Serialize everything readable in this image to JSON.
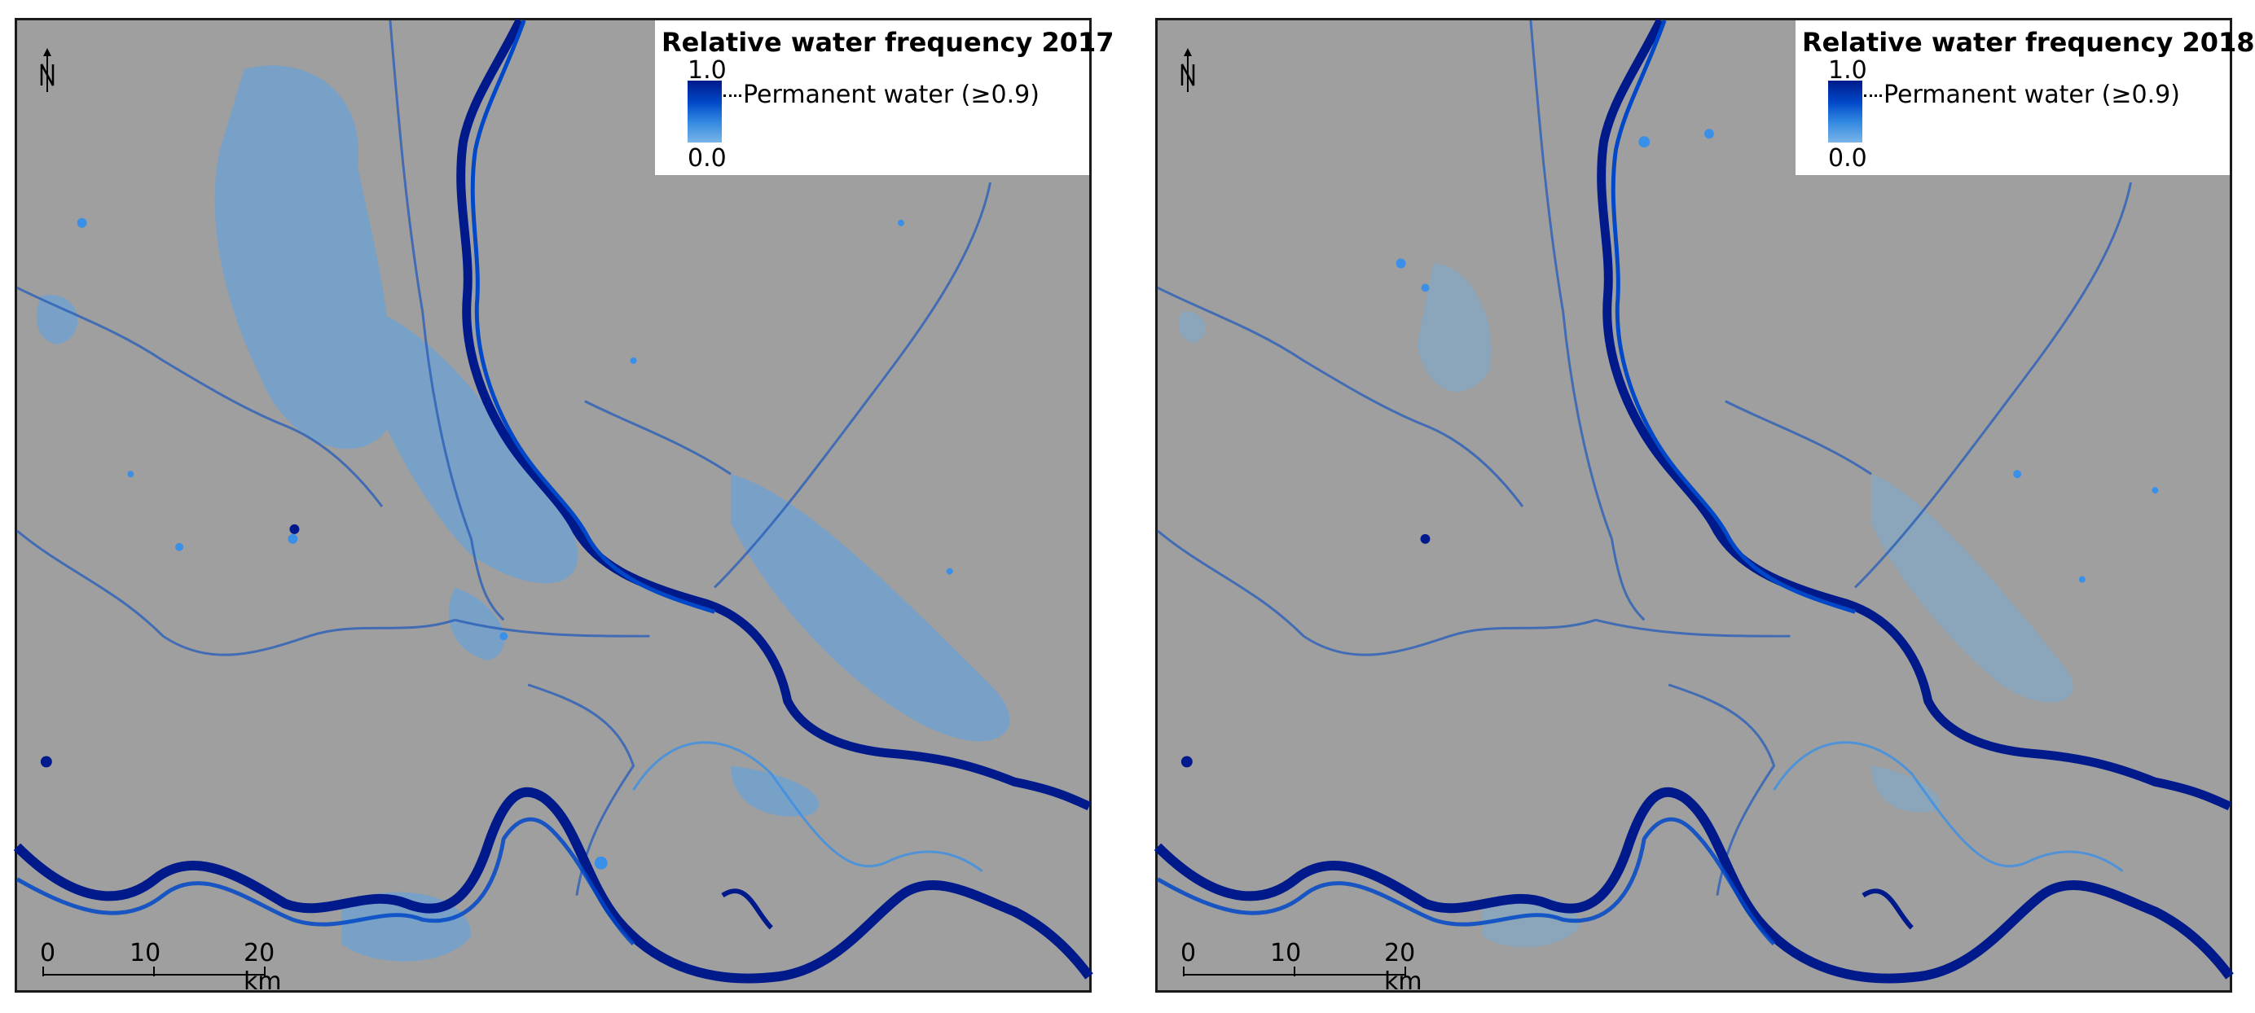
{
  "panels": [
    {
      "legend_title": "Relative water frequency 2017",
      "legend_max": "1.0",
      "legend_min": "0.0",
      "legend_permanent": "Permanent water (≥0.9)",
      "scale_labels": [
        "0",
        "10",
        "20 km"
      ],
      "north_label": "N"
    },
    {
      "legend_title": "Relative water frequency 2018",
      "legend_max": "1.0",
      "legend_min": "0.0",
      "legend_permanent": "Permanent water (≥0.9)",
      "scale_labels": [
        "0",
        "10",
        "20 km"
      ],
      "north_label": "N"
    }
  ],
  "colors": {
    "land": "#9f9f9f",
    "permanent_water": "#001a8c",
    "frequent_water": "#0048c8",
    "occasional_water": "#3a8fe6",
    "rare_water": "#7db6e6",
    "frame": "#1a1a1a"
  }
}
